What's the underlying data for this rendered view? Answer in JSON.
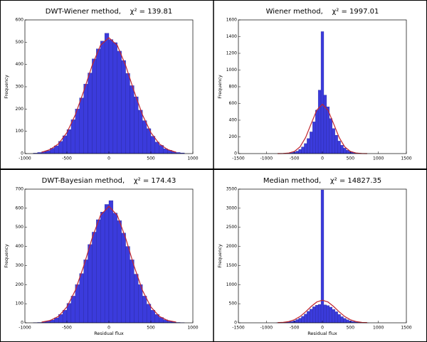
{
  "chart_data": [
    {
      "type": "histogram",
      "title": "DWT-Wiener method,    χ² = 139.81",
      "ylabel": "Frequency",
      "bins": [
        -900,
        -850,
        -800,
        -750,
        -700,
        -650,
        -600,
        -550,
        -500,
        -450,
        -400,
        -350,
        -300,
        -250,
        -200,
        -150,
        -100,
        -50,
        0,
        50,
        100,
        150,
        200,
        250,
        300,
        350,
        400,
        450,
        500,
        550,
        600,
        650,
        700,
        750,
        800,
        850,
        900
      ],
      "values": [
        2,
        5,
        9,
        13,
        24,
        35,
        55,
        80,
        108,
        152,
        200,
        250,
        312,
        362,
        425,
        470,
        505,
        540,
        512,
        498,
        460,
        418,
        360,
        305,
        255,
        195,
        148,
        112,
        78,
        52,
        37,
        22,
        15,
        8,
        5,
        3
      ],
      "color": "#3b3bdc",
      "fit_x": [
        -800,
        -700,
        -600,
        -500,
        -400,
        -300,
        -200,
        -100,
        0,
        100,
        200,
        300,
        400,
        500,
        600,
        700,
        800
      ],
      "fit_values": [
        6,
        18,
        44,
        94,
        174,
        280,
        395,
        486,
        520,
        486,
        395,
        280,
        174,
        94,
        44,
        18,
        6
      ],
      "fit_color": "#c0262e",
      "xlim": [
        -1000,
        1000
      ],
      "xticks": [
        -1000,
        -500,
        0,
        500,
        1000
      ],
      "ylim": [
        0,
        600
      ],
      "yticks": [
        0,
        100,
        200,
        300,
        400,
        500,
        600
      ]
    },
    {
      "type": "histogram",
      "title": "Wiener method,    χ² = 1997.01",
      "ylabel": "Frequency",
      "bins": [
        -825,
        -775,
        -725,
        -675,
        -625,
        -575,
        -525,
        -475,
        -425,
        -375,
        -325,
        -275,
        -225,
        -175,
        -125,
        -75,
        -25,
        25,
        75,
        125,
        175,
        225,
        275,
        325,
        375,
        425,
        475,
        525,
        575,
        625,
        675,
        725,
        775,
        825
      ],
      "values": [
        0,
        1,
        2,
        4,
        6,
        10,
        18,
        30,
        50,
        80,
        120,
        180,
        260,
        380,
        520,
        760,
        1460,
        700,
        560,
        420,
        300,
        220,
        150,
        100,
        65,
        40,
        25,
        14,
        8,
        4,
        2,
        1,
        0
      ],
      "color": "#3b3bdc",
      "fit_x": [
        -800,
        -700,
        -600,
        -500,
        -400,
        -300,
        -200,
        -100,
        0,
        100,
        200,
        300,
        400,
        500,
        600,
        700,
        800
      ],
      "fit_values": [
        0,
        1,
        7,
        26,
        80,
        192,
        358,
        521,
        590,
        521,
        358,
        192,
        80,
        26,
        7,
        1,
        0
      ],
      "fit_color": "#c0262e",
      "xlim": [
        -1500,
        1500
      ],
      "xticks": [
        -1500,
        -1000,
        -500,
        0,
        500,
        1000,
        1500
      ],
      "ylim": [
        0,
        1600
      ],
      "yticks": [
        0,
        200,
        400,
        600,
        800,
        1000,
        1200,
        1400,
        1600
      ]
    },
    {
      "type": "histogram",
      "title": "DWT-Bayesian method,    χ² = 174.43",
      "ylabel": "Frequency",
      "xlabel": "Residual flux",
      "bins": [
        -900,
        -850,
        -800,
        -750,
        -700,
        -650,
        -600,
        -550,
        -500,
        -450,
        -400,
        -350,
        -300,
        -250,
        -200,
        -150,
        -100,
        -50,
        0,
        50,
        100,
        150,
        200,
        250,
        300,
        350,
        400,
        450,
        500,
        550,
        600,
        650,
        700,
        750,
        800,
        850,
        900
      ],
      "values": [
        1,
        2,
        5,
        9,
        15,
        26,
        44,
        66,
        102,
        140,
        200,
        258,
        330,
        410,
        475,
        540,
        580,
        620,
        640,
        575,
        535,
        470,
        400,
        330,
        255,
        200,
        140,
        98,
        66,
        44,
        28,
        16,
        9,
        5,
        2,
        1
      ],
      "color": "#3b3bdc",
      "fit_x": [
        -800,
        -700,
        -600,
        -500,
        -400,
        -300,
        -200,
        -100,
        0,
        100,
        200,
        300,
        400,
        500,
        600,
        700,
        800
      ],
      "fit_values": [
        4,
        12,
        34,
        83,
        170,
        297,
        443,
        563,
        610,
        563,
        443,
        297,
        170,
        83,
        34,
        12,
        4
      ],
      "fit_color": "#c0262e",
      "xlim": [
        -1000,
        1000
      ],
      "xticks": [
        -1000,
        -500,
        0,
        500,
        1000
      ],
      "ylim": [
        0,
        700
      ],
      "yticks": [
        0,
        100,
        200,
        300,
        400,
        500,
        600,
        700
      ]
    },
    {
      "type": "histogram",
      "title": "Median method,    χ² = 14827.35",
      "ylabel": "Frequency",
      "xlabel": "Residual flux",
      "bins": [
        -825,
        -775,
        -725,
        -675,
        -625,
        -575,
        -525,
        -475,
        -425,
        -375,
        -325,
        -275,
        -225,
        -175,
        -125,
        -75,
        -25,
        25,
        75,
        125,
        175,
        225,
        275,
        325,
        375,
        425,
        475,
        525,
        575,
        625,
        675,
        725,
        775,
        825
      ],
      "values": [
        2,
        4,
        8,
        14,
        22,
        35,
        55,
        85,
        120,
        170,
        230,
        300,
        360,
        420,
        460,
        480,
        3480,
        470,
        450,
        410,
        350,
        290,
        220,
        160,
        115,
        80,
        50,
        32,
        20,
        12,
        7,
        3,
        1
      ],
      "color": "#3b3bdc",
      "fit_x": [
        -800,
        -700,
        -600,
        -500,
        -400,
        -300,
        -200,
        -100,
        0,
        100,
        200,
        300,
        400,
        500,
        600,
        700,
        800
      ],
      "fit_values": [
        4,
        12,
        33,
        80,
        164,
        287,
        428,
        545,
        590,
        545,
        428,
        287,
        164,
        80,
        33,
        12,
        4
      ],
      "fit_color": "#c0262e",
      "xlim": [
        -1500,
        1500
      ],
      "xticks": [
        -1500,
        -1000,
        -500,
        0,
        500,
        1000,
        1500
      ],
      "ylim": [
        0,
        3500
      ],
      "yticks": [
        0,
        500,
        1000,
        1500,
        2000,
        2500,
        3000,
        3500
      ]
    }
  ]
}
